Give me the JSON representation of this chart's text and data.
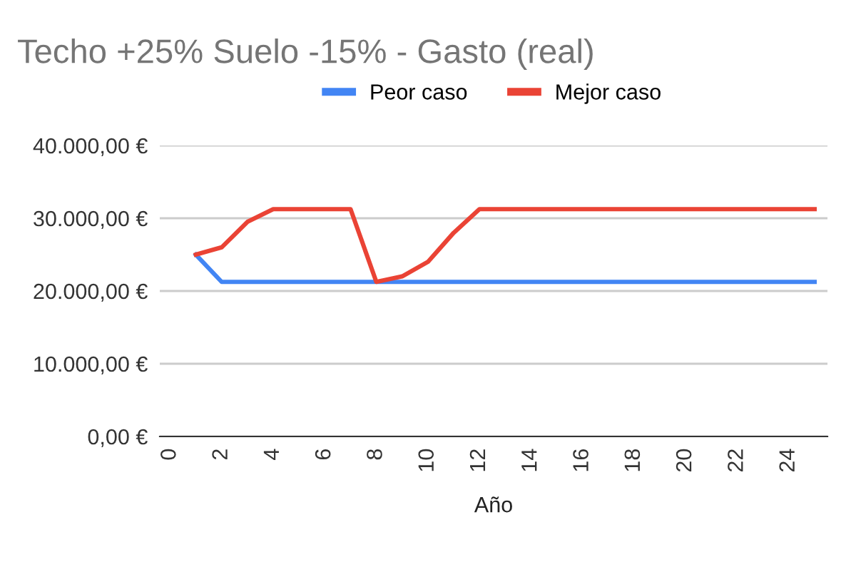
{
  "chart_data": {
    "type": "line",
    "title": "Techo +25% Suelo -15% - Gasto (real)",
    "xlabel": "Año",
    "x": [
      1,
      2,
      3,
      4,
      5,
      6,
      7,
      8,
      9,
      10,
      11,
      12,
      13,
      14,
      15,
      16,
      17,
      18,
      19,
      20,
      21,
      22,
      23,
      24,
      25
    ],
    "series": [
      {
        "name": "Peor caso",
        "color": "#4285f4",
        "values": [
          25000,
          21250,
          21250,
          21250,
          21250,
          21250,
          21250,
          21250,
          21250,
          21250,
          21250,
          21250,
          21250,
          21250,
          21250,
          21250,
          21250,
          21250,
          21250,
          21250,
          21250,
          21250,
          21250,
          21250,
          21250
        ]
      },
      {
        "name": "Mejor caso",
        "color": "#ea4335",
        "values": [
          25000,
          26000,
          29500,
          31250,
          31250,
          31250,
          31250,
          21250,
          22000,
          24000,
          28000,
          31250,
          31250,
          31250,
          31250,
          31250,
          31250,
          31250,
          31250,
          31250,
          31250,
          31250,
          31250,
          31250,
          31250
        ]
      }
    ],
    "xlim": [
      -0.4,
      25.5
    ],
    "xticks": [
      0,
      2,
      4,
      6,
      8,
      10,
      12,
      14,
      16,
      18,
      20,
      22,
      24
    ],
    "ylim": [
      0,
      40000
    ],
    "yticks": [
      {
        "value": 0,
        "label": "0,00 €"
      },
      {
        "value": 10000,
        "label": "10.000,00 €"
      },
      {
        "value": 20000,
        "label": "20.000,00 €"
      },
      {
        "value": 30000,
        "label": "30.000,00 €"
      },
      {
        "value": 40000,
        "label": "40.000,00 €"
      }
    ],
    "grid": "y",
    "legend": "top",
    "marker": "none",
    "line_style": "solid"
  }
}
